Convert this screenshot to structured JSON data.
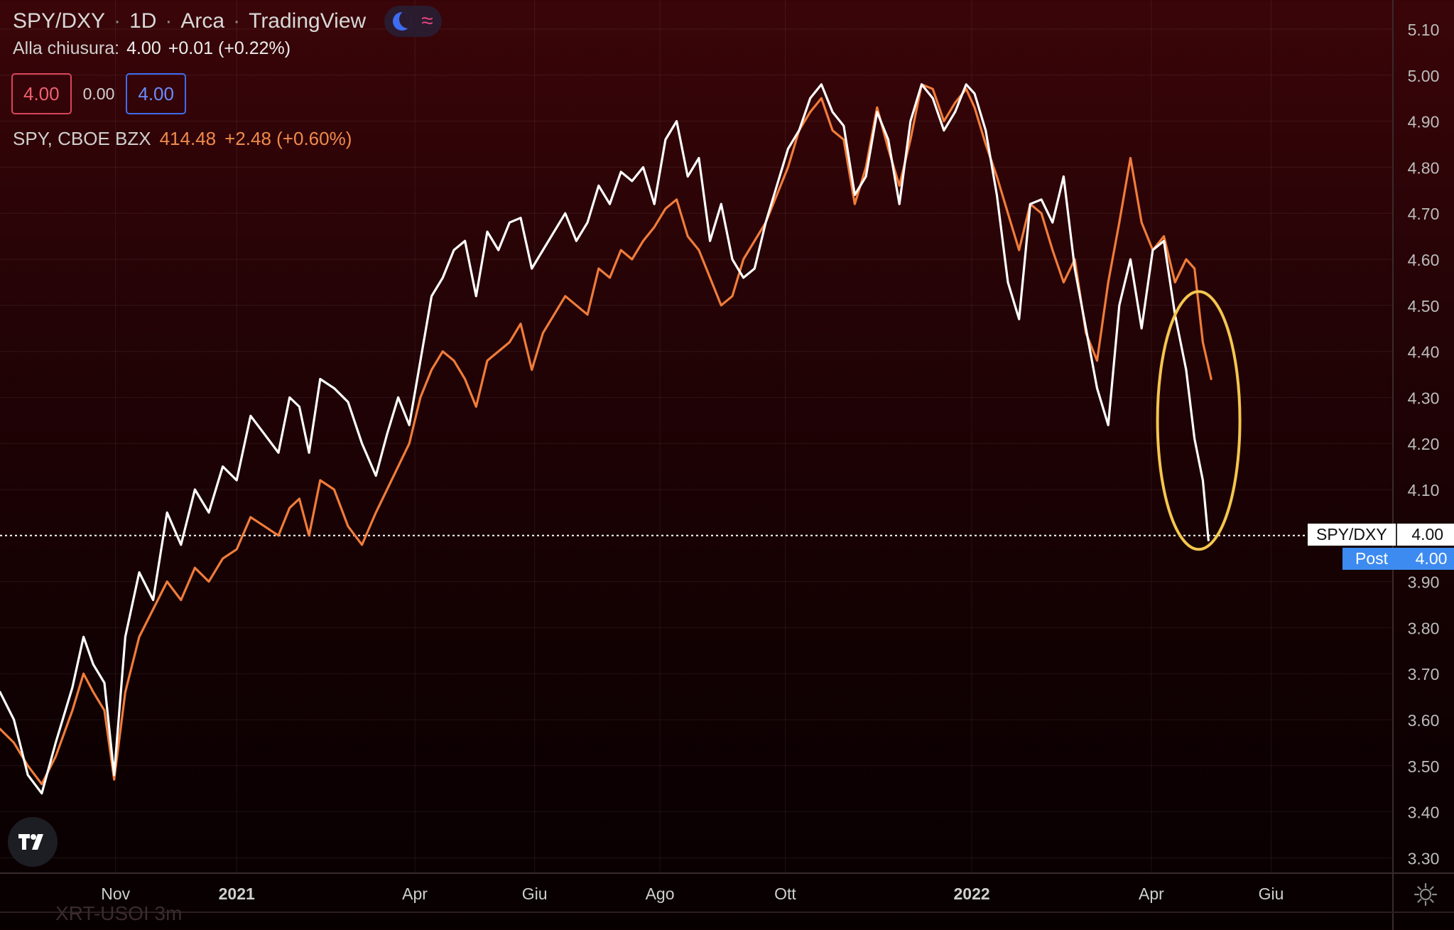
{
  "header": {
    "symbol": "SPY/DXY",
    "interval": "1D",
    "exchange": "Arca",
    "platform": "TradingView",
    "moon_icon": "moon-icon",
    "wave_icon": "wave-icon"
  },
  "ohlc": {
    "label": "Alla chiusura:",
    "value": "4.00",
    "change": "+0.01 (+0.22%)"
  },
  "boxes": {
    "bid": "4.00",
    "spread": "0.00",
    "ask": "4.00"
  },
  "spy_legend": {
    "label": "SPY, CBOE BZX",
    "price": "414.48",
    "change": "+2.48 (+0.60%)"
  },
  "price_tags": {
    "main_label": "SPY/DXY",
    "main_value": "4.00",
    "post_label": "Post",
    "post_value": "4.00"
  },
  "colors": {
    "ratio_line": "#ffffff",
    "spy_line": "#f07c3a",
    "annotation": "#f4c64e",
    "accent_blue": "#3d8bf0"
  },
  "ghost_text": "XRT-USOI 3m",
  "chart_data": {
    "type": "line",
    "title": "SPY/DXY · 1D · Arca",
    "xlabel": "",
    "ylabel": "",
    "ylim": [
      3.27,
      5.17
    ],
    "yticks": [
      "5.10",
      "5.00",
      "4.90",
      "4.80",
      "4.70",
      "4.60",
      "4.50",
      "4.40",
      "4.30",
      "4.20",
      "4.10",
      "3.90",
      "3.80",
      "3.70",
      "3.60",
      "3.50",
      "3.40",
      "3.30"
    ],
    "xticks": [
      {
        "label": "Nov",
        "t": 0.083
      },
      {
        "label": "2021",
        "t": 0.17,
        "bold": true
      },
      {
        "label": "Apr",
        "t": 0.298
      },
      {
        "label": "Giu",
        "t": 0.384
      },
      {
        "label": "Ago",
        "t": 0.474
      },
      {
        "label": "Ott",
        "t": 0.564
      },
      {
        "label": "2022",
        "t": 0.698,
        "bold": true
      },
      {
        "label": "Apr",
        "t": 0.827
      },
      {
        "label": "Giu",
        "t": 0.913
      }
    ],
    "last_value_line": 4.0,
    "annotation": {
      "type": "ellipse",
      "t_center": 0.861,
      "y_center": 4.25,
      "y_top": 4.51,
      "y_bottom": 3.95
    },
    "series": [
      {
        "name": "SPY/DXY",
        "t": [
          0.0,
          0.01,
          0.02,
          0.03,
          0.04,
          0.052,
          0.06,
          0.067,
          0.075,
          0.082,
          0.09,
          0.1,
          0.11,
          0.12,
          0.13,
          0.14,
          0.15,
          0.16,
          0.17,
          0.18,
          0.19,
          0.2,
          0.208,
          0.215,
          0.222,
          0.23,
          0.24,
          0.25,
          0.26,
          0.27,
          0.278,
          0.286,
          0.294,
          0.302,
          0.31,
          0.318,
          0.326,
          0.334,
          0.342,
          0.35,
          0.358,
          0.366,
          0.374,
          0.382,
          0.39,
          0.398,
          0.406,
          0.414,
          0.422,
          0.43,
          0.438,
          0.446,
          0.454,
          0.462,
          0.47,
          0.478,
          0.486,
          0.494,
          0.502,
          0.51,
          0.518,
          0.526,
          0.534,
          0.542,
          0.55,
          0.558,
          0.566,
          0.574,
          0.582,
          0.59,
          0.598,
          0.606,
          0.614,
          0.622,
          0.63,
          0.638,
          0.646,
          0.654,
          0.662,
          0.67,
          0.678,
          0.686,
          0.694,
          0.7,
          0.708,
          0.716,
          0.724,
          0.732,
          0.74,
          0.748,
          0.756,
          0.764,
          0.772,
          0.78,
          0.788,
          0.796,
          0.804,
          0.812,
          0.82,
          0.828,
          0.836,
          0.844,
          0.852,
          0.858,
          0.864,
          0.868
        ],
        "values": [
          3.66,
          3.6,
          3.48,
          3.44,
          3.55,
          3.67,
          3.78,
          3.72,
          3.68,
          3.48,
          3.78,
          3.92,
          3.86,
          4.05,
          3.98,
          4.1,
          4.05,
          4.15,
          4.12,
          4.26,
          4.22,
          4.18,
          4.3,
          4.28,
          4.18,
          4.34,
          4.32,
          4.29,
          4.2,
          4.13,
          4.22,
          4.3,
          4.24,
          4.38,
          4.52,
          4.56,
          4.62,
          4.64,
          4.52,
          4.66,
          4.62,
          4.68,
          4.69,
          4.58,
          4.62,
          4.66,
          4.7,
          4.64,
          4.68,
          4.76,
          4.72,
          4.79,
          4.77,
          4.8,
          4.72,
          4.86,
          4.9,
          4.78,
          4.82,
          4.64,
          4.72,
          4.6,
          4.56,
          4.58,
          4.68,
          4.76,
          4.84,
          4.88,
          4.95,
          4.98,
          4.92,
          4.89,
          4.74,
          4.78,
          4.92,
          4.86,
          4.72,
          4.9,
          4.98,
          4.95,
          4.88,
          4.92,
          4.98,
          4.96,
          4.88,
          4.74,
          4.55,
          4.47,
          4.72,
          4.73,
          4.68,
          4.78,
          4.58,
          4.45,
          4.32,
          4.24,
          4.5,
          4.6,
          4.45,
          4.62,
          4.64,
          4.48,
          4.36,
          4.21,
          4.12,
          3.99
        ]
      },
      {
        "name": "SPY, CBOE BZX",
        "t": [
          0.0,
          0.01,
          0.02,
          0.03,
          0.04,
          0.052,
          0.06,
          0.067,
          0.075,
          0.082,
          0.09,
          0.1,
          0.11,
          0.12,
          0.13,
          0.14,
          0.15,
          0.16,
          0.17,
          0.18,
          0.19,
          0.2,
          0.208,
          0.215,
          0.222,
          0.23,
          0.24,
          0.25,
          0.26,
          0.27,
          0.278,
          0.286,
          0.294,
          0.302,
          0.31,
          0.318,
          0.326,
          0.334,
          0.342,
          0.35,
          0.358,
          0.366,
          0.374,
          0.382,
          0.39,
          0.398,
          0.406,
          0.414,
          0.422,
          0.43,
          0.438,
          0.446,
          0.454,
          0.462,
          0.47,
          0.478,
          0.486,
          0.494,
          0.502,
          0.51,
          0.518,
          0.526,
          0.534,
          0.542,
          0.55,
          0.558,
          0.566,
          0.574,
          0.582,
          0.59,
          0.598,
          0.606,
          0.614,
          0.622,
          0.63,
          0.638,
          0.646,
          0.654,
          0.662,
          0.67,
          0.678,
          0.686,
          0.694,
          0.7,
          0.708,
          0.716,
          0.724,
          0.732,
          0.74,
          0.748,
          0.756,
          0.764,
          0.772,
          0.78,
          0.788,
          0.796,
          0.804,
          0.812,
          0.82,
          0.828,
          0.836,
          0.844,
          0.852,
          0.858,
          0.864,
          0.87
        ],
        "values": [
          3.58,
          3.55,
          3.5,
          3.46,
          3.52,
          3.62,
          3.7,
          3.66,
          3.62,
          3.47,
          3.66,
          3.78,
          3.84,
          3.9,
          3.86,
          3.93,
          3.9,
          3.95,
          3.97,
          4.04,
          4.02,
          4.0,
          4.06,
          4.08,
          4.0,
          4.12,
          4.1,
          4.02,
          3.98,
          4.05,
          4.1,
          4.15,
          4.2,
          4.3,
          4.36,
          4.4,
          4.38,
          4.34,
          4.28,
          4.38,
          4.4,
          4.42,
          4.46,
          4.36,
          4.44,
          4.48,
          4.52,
          4.5,
          4.48,
          4.58,
          4.56,
          4.62,
          4.6,
          4.64,
          4.67,
          4.71,
          4.73,
          4.65,
          4.62,
          4.56,
          4.5,
          4.52,
          4.6,
          4.64,
          4.68,
          4.74,
          4.8,
          4.88,
          4.92,
          4.95,
          4.88,
          4.86,
          4.72,
          4.8,
          4.93,
          4.84,
          4.76,
          4.86,
          4.98,
          4.97,
          4.9,
          4.94,
          4.97,
          4.93,
          4.85,
          4.78,
          4.7,
          4.62,
          4.72,
          4.7,
          4.62,
          4.55,
          4.6,
          4.44,
          4.38,
          4.55,
          4.68,
          4.82,
          4.68,
          4.62,
          4.65,
          4.55,
          4.6,
          4.58,
          4.42,
          4.34
        ]
      }
    ]
  }
}
